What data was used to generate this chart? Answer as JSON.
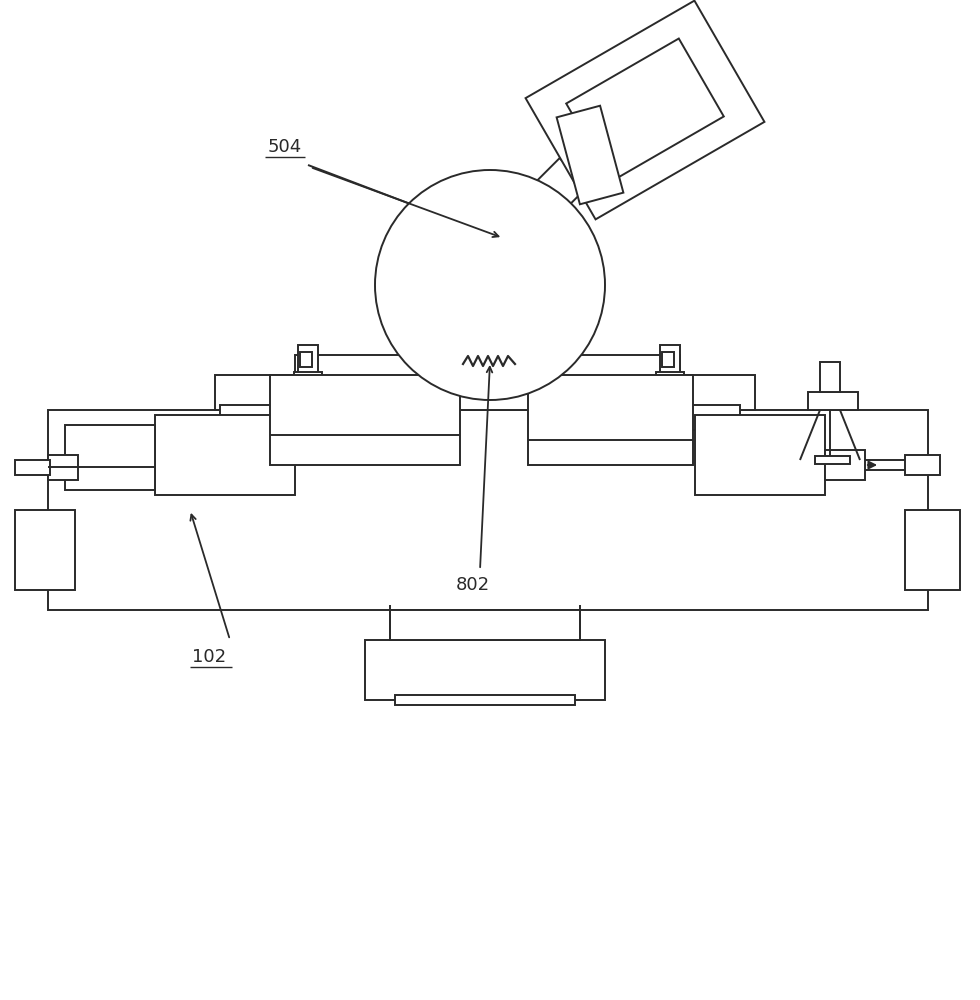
{
  "bg_color": "#ffffff",
  "line_color": "#2a2a2a",
  "line_width": 1.4,
  "fig_width": 9.8,
  "fig_height": 10.0,
  "label_504": "504",
  "label_102": "102",
  "label_802": "802",
  "xlim": [
    0,
    980
  ],
  "ylim": [
    0,
    1000
  ]
}
